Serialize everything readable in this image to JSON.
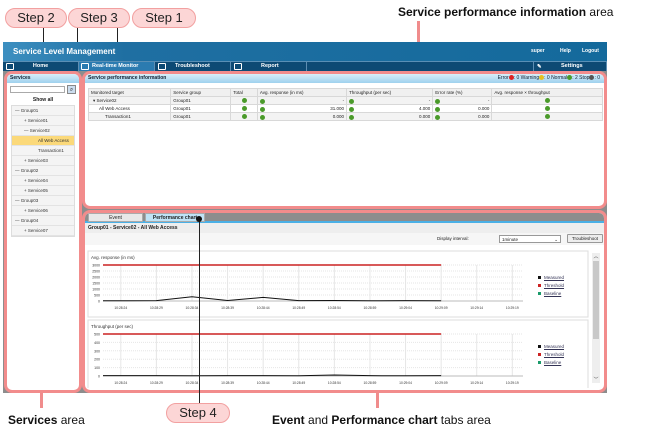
{
  "annotations": {
    "steps": [
      "Step 2",
      "Step 3",
      "Step 1",
      "Step 4"
    ],
    "service_perf_area_bold": "Service performance information",
    "service_perf_area_suffix": " area",
    "services_area_bold": "Services",
    "services_area_suffix": " area",
    "tabs_area_bold1": "Event",
    "tabs_area_mid": " and ",
    "tabs_area_bold2": "Performance chart",
    "tabs_area_suffix": " tabs area",
    "color": "#f28c8c"
  },
  "header": {
    "title": "Service Level Management",
    "user": "super",
    "help": "Help",
    "logout": "Logout"
  },
  "nav": {
    "home": "Home",
    "realtime": "Real-time Monitor",
    "troubleshoot": "Troubleshoot",
    "report": "Report",
    "settings": "Settings"
  },
  "services": {
    "title": "Services",
    "search_placeholder": "",
    "show_all": "Show all",
    "tree": [
      {
        "label": "— Group01",
        "indent": 1
      },
      {
        "label": "+ Service01",
        "indent": 2
      },
      {
        "label": "— Service02",
        "indent": 2
      },
      {
        "label": "All Web Access",
        "indent": 3,
        "selected": true
      },
      {
        "label": "Transaction1",
        "indent": 3
      },
      {
        "label": "+ Service03",
        "indent": 2
      },
      {
        "label": "— Group02",
        "indent": 1
      },
      {
        "label": "+ Service04",
        "indent": 2
      },
      {
        "label": "+ Service05",
        "indent": 2
      },
      {
        "label": "— Group03",
        "indent": 1
      },
      {
        "label": "+ Service06",
        "indent": 2
      },
      {
        "label": "— Group04",
        "indent": 1
      },
      {
        "label": "+ Service07",
        "indent": 2
      }
    ]
  },
  "perf": {
    "title": "Service performance information",
    "counts": {
      "error_label": "Error",
      "error": ": 0",
      "warning_label": "Warning",
      "warning": ": 0",
      "normal_label": "Normal",
      "normal": ": 2",
      "stop_label": "Stop",
      "stop": ": 0"
    },
    "columns": [
      "Monitored target",
      "Service group",
      "Total",
      "Avg. response (in ms)",
      "Throughput (per sec)",
      "Error rate (%)",
      "Avg. response × throughput"
    ],
    "rows": [
      {
        "target": "▾ Service02",
        "group": "Group01",
        "avg": "-",
        "thr": "-",
        "err": "-"
      },
      {
        "target": "All Web Access",
        "group": "Group01",
        "avg": "31.000",
        "thr": "4.000",
        "err": "0.000"
      },
      {
        "target": "Transaction1",
        "group": "Group01",
        "avg": "0.000",
        "thr": "0.000",
        "err": "0.000"
      }
    ]
  },
  "tabs": {
    "event": "Event",
    "perf_chart": "Performance chart",
    "breadcrumb": "Group01 - Service02 - All Web Access",
    "interval_label": "Display interval:",
    "interval_value": "1minute",
    "troubleshoot": "Troubleshoot"
  },
  "legend": {
    "measured": "Measured",
    "threshold": "Threshold",
    "baseline": "Baseline",
    "measured_color": "#111111",
    "threshold_color": "#cc2222",
    "baseline_color": "#1a9a6a"
  },
  "chart_data": [
    {
      "type": "line",
      "title": "Avg. response (in ms)",
      "ylim": [
        0,
        3000
      ],
      "yticks": [
        "3000",
        "2500",
        "2000",
        "1500",
        "1000",
        "500",
        "0"
      ],
      "x": [
        "10:28:24",
        "10:28:29",
        "10:28:34",
        "10:28:39",
        "10:28:44",
        "10:28:49",
        "10:28:54",
        "10:28:59",
        "10:29:04",
        "10:29:09",
        "10:29:14",
        "10:29:19"
      ],
      "series": [
        {
          "name": "Measured",
          "values": [
            20,
            30,
            350,
            40,
            300,
            30,
            40,
            20,
            30,
            25,
            null,
            null
          ]
        },
        {
          "name": "Threshold",
          "values": [
            3000,
            3000,
            3000,
            3000,
            3000,
            3000,
            3000,
            3000,
            3000,
            3000,
            null,
            null
          ]
        }
      ]
    },
    {
      "type": "line",
      "title": "Throughput (per sec)",
      "ylim": [
        0,
        500
      ],
      "yticks": [
        "500",
        "400",
        "300",
        "200",
        "100",
        "0"
      ],
      "x": [
        "10:28:24",
        "10:28:29",
        "10:28:34",
        "10:28:39",
        "10:28:44",
        "10:28:49",
        "10:28:54",
        "10:28:59",
        "10:29:04",
        "10:29:09",
        "10:29:14",
        "10:29:19"
      ],
      "series": [
        {
          "name": "Measured",
          "values": [
            4,
            5,
            3,
            4,
            4,
            3,
            12,
            4,
            3,
            4,
            null,
            null
          ]
        },
        {
          "name": "Threshold",
          "values": [
            500,
            500,
            500,
            500,
            500,
            500,
            500,
            500,
            500,
            500,
            null,
            null
          ]
        }
      ]
    }
  ]
}
